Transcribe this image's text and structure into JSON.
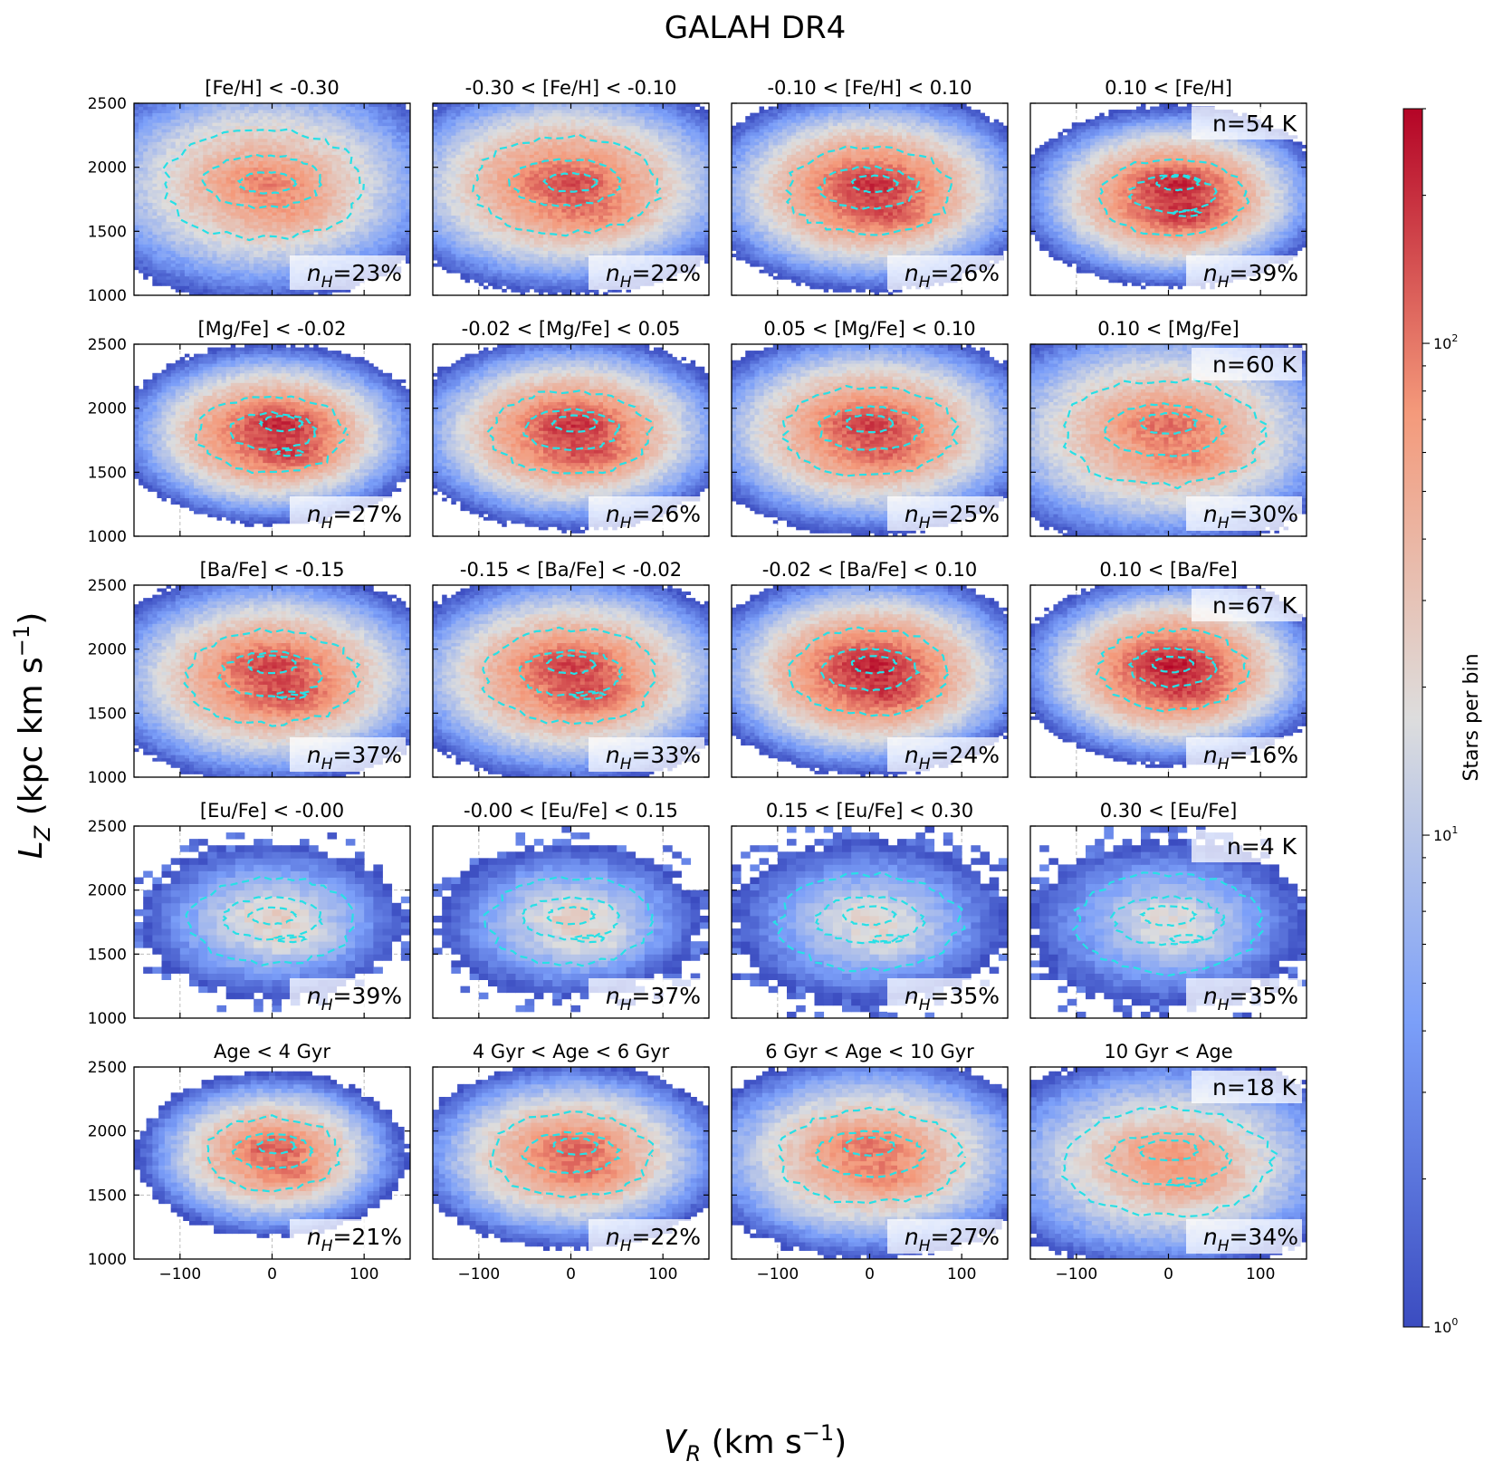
{
  "title": "GALAH DR4",
  "chart_data": {
    "type": "heatmap",
    "x_label_main": "V",
    "x_label_sub": "R",
    "x_label_unit": " (km s",
    "x_label_sup": "−1",
    "x_label_close": ")",
    "y_label_main": "L",
    "y_label_sub": "Z",
    "y_label_unit": " (kpc km s",
    "y_label_sup": "−1",
    "y_label_close": ")",
    "xlim": [
      -150,
      150
    ],
    "ylim": [
      1000,
      2500
    ],
    "xticks": [
      -100,
      0,
      100
    ],
    "xtick_labels": [
      "−100",
      "0",
      "100"
    ],
    "yticks": [
      1000,
      1500,
      2000,
      2500
    ],
    "ytick_labels": [
      "1000",
      "1500",
      "2000",
      "2500"
    ],
    "grid": true,
    "colorbar": {
      "label": "Stars per bin",
      "scale": "log",
      "range": [
        1,
        300
      ],
      "colormap": "coolwarm",
      "ticks": [
        {
          "base": "10",
          "exp": "0",
          "value": 1
        },
        {
          "base": "10",
          "exp": "1",
          "value": 10
        },
        {
          "base": "10",
          "exp": "2",
          "value": 100
        }
      ]
    },
    "contour_color": "#27e0e6",
    "nh_prefix": "n",
    "nh_sub": "H",
    "panels": [
      {
        "title": "[Fe/H] < -0.30",
        "nh": "=23%",
        "n": "",
        "peak": 90,
        "cx": -10,
        "cy": 1870,
        "sx": 75,
        "sy": 330,
        "bins": 60,
        "clumps": [
          [
            -5,
            1880,
            1.0
          ],
          [
            20,
            1650,
            0.6
          ]
        ]
      },
      {
        "title": "-0.30 < [Fe/H] < -0.10",
        "nh": "=22%",
        "n": "",
        "peak": 150,
        "cx": -5,
        "cy": 1860,
        "sx": 70,
        "sy": 290,
        "bins": 60,
        "clumps": [
          [
            0,
            1880,
            1.0
          ],
          [
            20,
            1650,
            0.6
          ]
        ]
      },
      {
        "title": "-0.10 < [Fe/H] < 0.10",
        "nh": "=26%",
        "n": "",
        "peak": 200,
        "cx": 0,
        "cy": 1820,
        "sx": 62,
        "sy": 260,
        "bins": 60,
        "clumps": [
          [
            5,
            1870,
            1.0
          ],
          [
            20,
            1640,
            0.7
          ]
        ]
      },
      {
        "title": "0.10 < [Fe/H]",
        "nh": "=39%",
        "n": "n=54 K",
        "peak": 230,
        "cx": 5,
        "cy": 1770,
        "sx": 55,
        "sy": 230,
        "bins": 60,
        "clumps": [
          [
            10,
            1880,
            1.0
          ],
          [
            20,
            1640,
            0.85
          ]
        ]
      },
      {
        "title": "[Mg/Fe] < -0.02",
        "nh": "=27%",
        "n": "",
        "peak": 220,
        "cx": 0,
        "cy": 1800,
        "sx": 55,
        "sy": 230,
        "bins": 60,
        "clumps": [
          [
            10,
            1880,
            1.0
          ],
          [
            20,
            1650,
            0.8
          ]
        ]
      },
      {
        "title": "-0.02 < [Mg/Fe] < 0.05",
        "nh": "=26%",
        "n": "",
        "peak": 200,
        "cx": 0,
        "cy": 1810,
        "sx": 60,
        "sy": 250,
        "bins": 60,
        "clumps": [
          [
            5,
            1880,
            1.0
          ],
          [
            20,
            1650,
            0.7
          ]
        ]
      },
      {
        "title": "0.05 < [Mg/Fe] < 0.10",
        "nh": "=25%",
        "n": "",
        "peak": 170,
        "cx": 0,
        "cy": 1820,
        "sx": 65,
        "sy": 270,
        "bins": 60,
        "clumps": [
          [
            0,
            1880,
            1.0
          ],
          [
            20,
            1650,
            0.65
          ]
        ]
      },
      {
        "title": "0.10 < [Mg/Fe]",
        "nh": "=30%",
        "n": "n=60 K",
        "peak": 110,
        "cx": -5,
        "cy": 1810,
        "sx": 75,
        "sy": 320,
        "bins": 60,
        "clumps": [
          [
            0,
            1880,
            1.0
          ],
          [
            20,
            1600,
            0.75
          ]
        ]
      },
      {
        "title": "[Ba/Fe] < -0.15",
        "nh": "=37%",
        "n": "",
        "peak": 170,
        "cx": 0,
        "cy": 1780,
        "sx": 65,
        "sy": 280,
        "bins": 60,
        "clumps": [
          [
            0,
            1880,
            1.0
          ],
          [
            20,
            1640,
            0.9
          ]
        ]
      },
      {
        "title": "-0.15 < [Ba/Fe] < -0.02",
        "nh": "=33%",
        "n": "",
        "peak": 170,
        "cx": 0,
        "cy": 1790,
        "sx": 65,
        "sy": 280,
        "bins": 60,
        "clumps": [
          [
            0,
            1880,
            1.0
          ],
          [
            20,
            1640,
            0.85
          ]
        ]
      },
      {
        "title": "-0.02 < [Ba/Fe] < 0.10",
        "nh": "=24%",
        "n": "",
        "peak": 230,
        "cx": 0,
        "cy": 1820,
        "sx": 60,
        "sy": 260,
        "bins": 60,
        "clumps": [
          [
            5,
            1880,
            1.0
          ],
          [
            20,
            1660,
            0.7
          ]
        ]
      },
      {
        "title": "0.10 < [Ba/Fe]",
        "nh": "=16%",
        "n": "n=67 K",
        "peak": 250,
        "cx": 5,
        "cy": 1840,
        "sx": 55,
        "sy": 240,
        "bins": 60,
        "clumps": [
          [
            5,
            1880,
            1.0
          ],
          [
            20,
            1680,
            0.6
          ]
        ]
      },
      {
        "title": "[Eu/Fe] < -0.00",
        "nh": "=39%",
        "n": "",
        "peak": 25,
        "cx": 0,
        "cy": 1760,
        "sx": 62,
        "sy": 260,
        "bins": 30,
        "clumps": [
          [
            0,
            1800,
            1.0
          ],
          [
            20,
            1620,
            0.8
          ]
        ]
      },
      {
        "title": "-0.00 < [Eu/Fe] < 0.15",
        "nh": "=37%",
        "n": "",
        "peak": 25,
        "cx": 0,
        "cy": 1760,
        "sx": 62,
        "sy": 260,
        "bins": 30,
        "clumps": [
          [
            0,
            1800,
            1.0
          ],
          [
            20,
            1620,
            0.8
          ]
        ]
      },
      {
        "title": "0.15 < [Eu/Fe] < 0.30",
        "nh": "=35%",
        "n": "",
        "peak": 20,
        "cx": 0,
        "cy": 1750,
        "sx": 68,
        "sy": 290,
        "bins": 30,
        "clumps": [
          [
            0,
            1800,
            1.0
          ],
          [
            20,
            1620,
            0.8
          ]
        ]
      },
      {
        "title": "0.30 < [Eu/Fe]",
        "nh": "=35%",
        "n": "n=4 K",
        "peak": 18,
        "cx": 0,
        "cy": 1740,
        "sx": 70,
        "sy": 300,
        "bins": 30,
        "clumps": [
          [
            0,
            1800,
            1.0
          ],
          [
            20,
            1620,
            0.8
          ]
        ]
      },
      {
        "title": "Age < 4 Gyr",
        "nh": "=21%",
        "n": "",
        "peak": 140,
        "cx": 0,
        "cy": 1820,
        "sx": 50,
        "sy": 220,
        "bins": 45,
        "clumps": [
          [
            5,
            1880,
            1.0
          ],
          [
            20,
            1680,
            0.7
          ]
        ]
      },
      {
        "title": "4 Gyr < Age < 6 Gyr",
        "nh": "=22%",
        "n": "",
        "peak": 130,
        "cx": 0,
        "cy": 1810,
        "sx": 60,
        "sy": 250,
        "bins": 45,
        "clumps": [
          [
            5,
            1880,
            1.0
          ],
          [
            20,
            1660,
            0.7
          ]
        ]
      },
      {
        "title": "6 Gyr < Age < 10 Gyr",
        "nh": "=27%",
        "n": "",
        "peak": 110,
        "cx": 0,
        "cy": 1800,
        "sx": 68,
        "sy": 280,
        "bins": 45,
        "clumps": [
          [
            0,
            1880,
            1.0
          ],
          [
            20,
            1640,
            0.7
          ]
        ]
      },
      {
        "title": "10 Gyr < Age",
        "nh": "=34%",
        "n": "n=18 K",
        "peak": 70,
        "cx": 0,
        "cy": 1760,
        "sx": 78,
        "sy": 320,
        "bins": 45,
        "clumps": [
          [
            0,
            1850,
            1.0
          ],
          [
            20,
            1600,
            0.8
          ]
        ]
      }
    ]
  }
}
